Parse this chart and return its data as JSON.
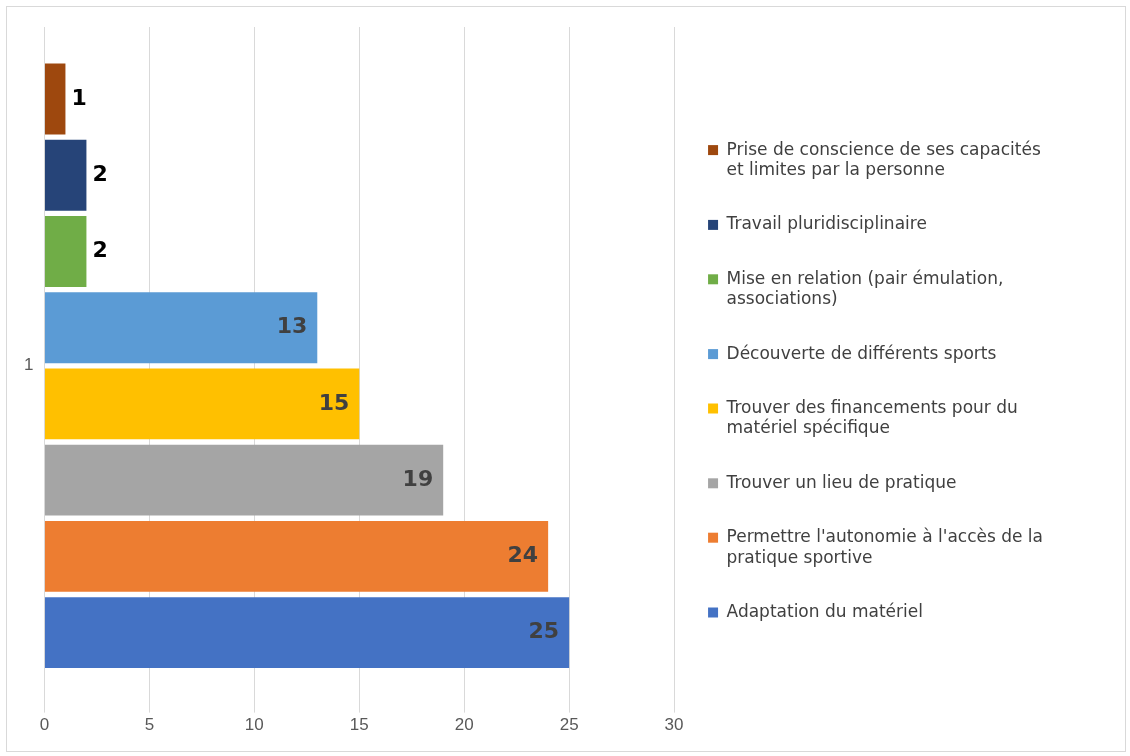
{
  "chart_data": {
    "type": "bar",
    "orientation": "horizontal",
    "categories": [
      "1"
    ],
    "series": [
      {
        "name": "Prise de conscience de ses capacités et limites par la personne",
        "color": "#9e480e",
        "values": [
          1
        ]
      },
      {
        "name": "Travail pluridisciplinaire",
        "color": "#264478",
        "values": [
          2
        ]
      },
      {
        "name": "Mise en relation (pair émulation, associations)",
        "color": "#70ad47",
        "values": [
          2
        ]
      },
      {
        "name": "Découverte de différents sports",
        "color": "#5b9bd5",
        "values": [
          13
        ]
      },
      {
        "name": "Trouver des financements pour du matériel spécifique",
        "color": "#ffc000",
        "values": [
          15
        ]
      },
      {
        "name": "Trouver un lieu de pratique",
        "color": "#a5a5a5",
        "values": [
          19
        ]
      },
      {
        "name": "Permettre l'autonomie à l'accès de la pratique sportive",
        "color": "#ed7d31",
        "values": [
          24
        ]
      },
      {
        "name": "Adaptation du matériel",
        "color": "#4472c4",
        "values": [
          25
        ]
      }
    ],
    "xlim": [
      0,
      30
    ],
    "xticks": [
      0,
      5,
      10,
      15,
      20,
      25,
      30
    ],
    "grid": "x",
    "legend": "right",
    "data_labels": true
  }
}
